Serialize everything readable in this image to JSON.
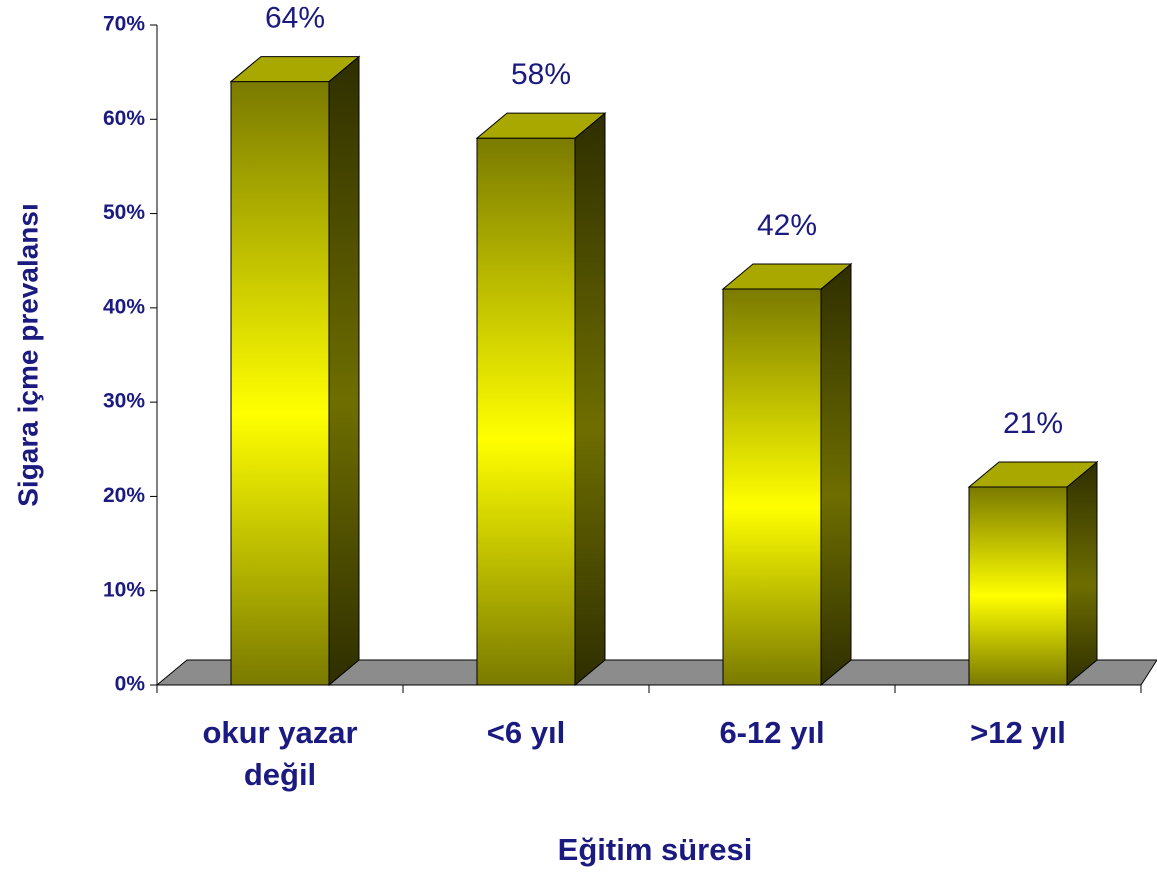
{
  "chart_data": {
    "type": "bar3d",
    "categories": [
      "okur yazar değil",
      "<6 yıl",
      "6-12 yıl",
      ">12 yıl"
    ],
    "values": [
      64,
      58,
      42,
      21
    ],
    "value_labels": [
      "64%",
      "58%",
      "42%",
      "21%"
    ],
    "color": "#ffff00",
    "xlabel": "Eğitim süresi",
    "ylabel": "Sigara içme prevalansı",
    "ylim": [
      0,
      70
    ],
    "yticks": [
      {
        "value": 0,
        "label": "0%"
      },
      {
        "value": 10,
        "label": "10%"
      },
      {
        "value": 20,
        "label": "20%"
      },
      {
        "value": 30,
        "label": "30%"
      },
      {
        "value": 40,
        "label": "40%"
      },
      {
        "value": 50,
        "label": "50%"
      },
      {
        "value": 60,
        "label": "60%"
      },
      {
        "value": 70,
        "label": "70%"
      }
    ]
  }
}
